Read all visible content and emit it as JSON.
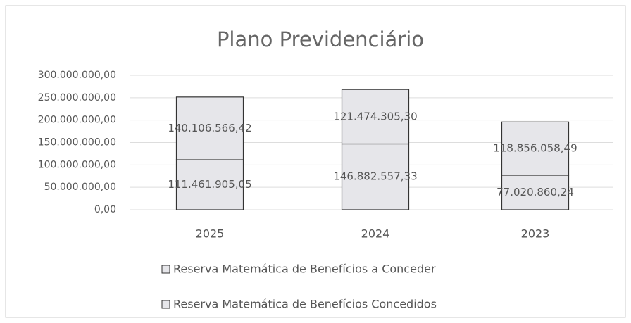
{
  "chart_data": {
    "type": "stacked_bar",
    "title": "Plano Previdenciário",
    "categories": [
      "2025",
      "2024",
      "2023"
    ],
    "series": [
      {
        "name": "Reserva Matemática de Benefícios a Conceder",
        "color": "#e6e6ea",
        "values": [
          111461905.05,
          146882557.33,
          77020860.24
        ],
        "value_labels": [
          "111.461.905,05",
          "146.882.557,33",
          "77.020.860,24"
        ]
      },
      {
        "name": "Reserva Matemática de Benefícios Concedidos",
        "color": "#e6e6ea",
        "values": [
          140106566.42,
          121474305.3,
          118856058.49
        ],
        "value_labels": [
          "140.106.566,42",
          "121.474.305,30",
          "118.856.058,49"
        ]
      }
    ],
    "ylim": [
      0,
      300000000
    ],
    "yticks": [
      {
        "value": 0,
        "label": "0,00"
      },
      {
        "value": 50000000,
        "label": "50.000.000,00"
      },
      {
        "value": 100000000,
        "label": "100.000.000,00"
      },
      {
        "value": 150000000,
        "label": "150.000.000,00"
      },
      {
        "value": 200000000,
        "label": "200.000.000,00"
      },
      {
        "value": 250000000,
        "label": "250.000.000,00"
      },
      {
        "value": 300000000,
        "label": "300.000.000,00"
      }
    ],
    "grid": true
  }
}
